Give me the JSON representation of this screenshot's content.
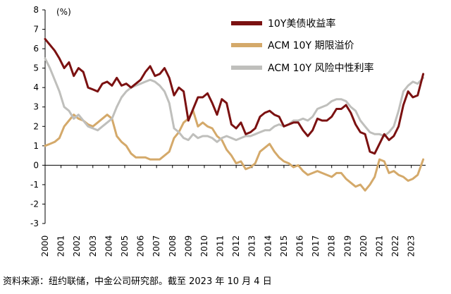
{
  "chart_data": {
    "type": "line",
    "unit_label": "(%)",
    "ylim": [
      -3,
      8
    ],
    "xlim": [
      2000,
      2023.9
    ],
    "y_ticks": [
      8,
      7,
      6,
      5,
      4,
      3,
      2,
      1,
      0,
      -1,
      -2,
      -3
    ],
    "x_ticks": [
      "2000",
      "2001",
      "2002",
      "2003",
      "2004",
      "2005",
      "2006",
      "2007",
      "2008",
      "2009",
      "2010",
      "2011",
      "2012",
      "2013",
      "2014",
      "2015",
      "2016",
      "2017",
      "2018",
      "2019",
      "2020",
      "2021",
      "2022",
      "2023"
    ],
    "grid": false,
    "legend_position": "top-right",
    "colors": {
      "yield": "#7B1111",
      "term_premium": "#D4A96A",
      "risk_neutral": "#BFBFBC"
    },
    "series": [
      {
        "key": "yield",
        "name": "10Y美债收益率",
        "x": [
          2000.0,
          2000.3,
          2000.6,
          2000.9,
          2001.2,
          2001.5,
          2001.8,
          2002.1,
          2002.4,
          2002.7,
          2003.0,
          2003.3,
          2003.6,
          2003.9,
          2004.2,
          2004.5,
          2004.8,
          2005.1,
          2005.4,
          2005.7,
          2006.0,
          2006.3,
          2006.6,
          2006.9,
          2007.2,
          2007.5,
          2007.8,
          2008.1,
          2008.4,
          2008.7,
          2009.0,
          2009.3,
          2009.6,
          2009.9,
          2010.2,
          2010.5,
          2010.8,
          2011.1,
          2011.4,
          2011.7,
          2012.0,
          2012.3,
          2012.6,
          2012.9,
          2013.2,
          2013.5,
          2013.8,
          2014.1,
          2014.4,
          2014.7,
          2015.0,
          2015.3,
          2015.6,
          2015.9,
          2016.2,
          2016.5,
          2016.8,
          2017.1,
          2017.4,
          2017.7,
          2018.0,
          2018.3,
          2018.6,
          2018.9,
          2019.2,
          2019.5,
          2019.8,
          2020.1,
          2020.4,
          2020.7,
          2021.0,
          2021.3,
          2021.6,
          2021.9,
          2022.2,
          2022.5,
          2022.8,
          2023.1,
          2023.4,
          2023.75
        ],
        "values": [
          6.5,
          6.2,
          5.9,
          5.5,
          5.0,
          5.3,
          4.6,
          5.0,
          4.8,
          4.0,
          3.9,
          3.8,
          4.2,
          4.3,
          4.1,
          4.5,
          4.1,
          4.2,
          4.0,
          4.2,
          4.4,
          4.8,
          5.1,
          4.6,
          4.7,
          5.0,
          4.5,
          3.6,
          4.0,
          3.8,
          2.3,
          2.9,
          3.5,
          3.5,
          3.7,
          3.2,
          2.6,
          3.4,
          3.2,
          2.1,
          1.9,
          2.2,
          1.6,
          1.7,
          1.9,
          2.5,
          2.7,
          2.8,
          2.6,
          2.5,
          2.0,
          2.1,
          2.2,
          2.2,
          1.8,
          1.5,
          1.8,
          2.4,
          2.3,
          2.3,
          2.5,
          2.9,
          2.9,
          3.1,
          2.7,
          2.1,
          1.7,
          1.6,
          0.7,
          0.6,
          1.1,
          1.6,
          1.3,
          1.5,
          2.0,
          3.1,
          3.8,
          3.5,
          3.6,
          4.7
        ]
      },
      {
        "key": "term_premium",
        "name": "ACM 10Y 期限溢价",
        "x": [
          2000.0,
          2000.3,
          2000.6,
          2000.9,
          2001.2,
          2001.5,
          2001.8,
          2002.1,
          2002.4,
          2002.7,
          2003.0,
          2003.3,
          2003.6,
          2003.9,
          2004.2,
          2004.5,
          2004.8,
          2005.1,
          2005.4,
          2005.7,
          2006.0,
          2006.3,
          2006.6,
          2006.9,
          2007.2,
          2007.5,
          2007.8,
          2008.1,
          2008.4,
          2008.7,
          2009.0,
          2009.3,
          2009.6,
          2009.9,
          2010.2,
          2010.5,
          2010.8,
          2011.1,
          2011.4,
          2011.7,
          2012.0,
          2012.3,
          2012.6,
          2012.9,
          2013.2,
          2013.5,
          2013.8,
          2014.1,
          2014.4,
          2014.7,
          2015.0,
          2015.3,
          2015.6,
          2015.9,
          2016.2,
          2016.5,
          2016.8,
          2017.1,
          2017.4,
          2017.7,
          2018.0,
          2018.3,
          2018.6,
          2018.9,
          2019.2,
          2019.5,
          2019.8,
          2020.1,
          2020.4,
          2020.7,
          2021.0,
          2021.3,
          2021.6,
          2021.9,
          2022.2,
          2022.5,
          2022.8,
          2023.1,
          2023.4,
          2023.75
        ],
        "values": [
          1.0,
          1.1,
          1.2,
          1.4,
          2.0,
          2.3,
          2.6,
          2.4,
          2.3,
          2.1,
          2.0,
          2.2,
          2.4,
          2.6,
          2.4,
          1.5,
          1.2,
          1.0,
          0.6,
          0.4,
          0.4,
          0.4,
          0.3,
          0.3,
          0.3,
          0.5,
          0.7,
          1.4,
          1.7,
          2.2,
          2.4,
          2.8,
          2.0,
          2.2,
          2.0,
          1.9,
          1.5,
          1.3,
          0.8,
          0.5,
          0.1,
          0.2,
          -0.2,
          -0.1,
          0.1,
          0.7,
          0.9,
          1.1,
          0.7,
          0.4,
          0.2,
          0.1,
          -0.1,
          0.0,
          -0.3,
          -0.5,
          -0.4,
          -0.3,
          -0.4,
          -0.5,
          -0.6,
          -0.4,
          -0.4,
          -0.7,
          -0.9,
          -1.1,
          -1.0,
          -1.3,
          -1.0,
          -0.6,
          0.3,
          0.2,
          -0.4,
          -0.3,
          -0.5,
          -0.6,
          -0.8,
          -0.7,
          -0.5,
          0.3
        ]
      },
      {
        "key": "risk_neutral",
        "name": "ACM 10Y 风险中性利率",
        "x": [
          2000.0,
          2000.3,
          2000.6,
          2000.9,
          2001.2,
          2001.5,
          2001.8,
          2002.1,
          2002.4,
          2002.7,
          2003.0,
          2003.3,
          2003.6,
          2003.9,
          2004.2,
          2004.5,
          2004.8,
          2005.1,
          2005.4,
          2005.7,
          2006.0,
          2006.3,
          2006.6,
          2006.9,
          2007.2,
          2007.5,
          2007.8,
          2008.1,
          2008.4,
          2008.7,
          2009.0,
          2009.3,
          2009.6,
          2009.9,
          2010.2,
          2010.5,
          2010.8,
          2011.1,
          2011.4,
          2011.7,
          2012.0,
          2012.3,
          2012.6,
          2012.9,
          2013.2,
          2013.5,
          2013.8,
          2014.1,
          2014.4,
          2014.7,
          2015.0,
          2015.3,
          2015.6,
          2015.9,
          2016.2,
          2016.5,
          2016.8,
          2017.1,
          2017.4,
          2017.7,
          2018.0,
          2018.3,
          2018.6,
          2018.9,
          2019.2,
          2019.5,
          2019.8,
          2020.1,
          2020.4,
          2020.7,
          2021.0,
          2021.3,
          2021.6,
          2021.9,
          2022.2,
          2022.5,
          2022.8,
          2023.1,
          2023.4,
          2023.75
        ],
        "values": [
          5.5,
          5.0,
          4.4,
          3.8,
          3.0,
          2.8,
          2.4,
          2.6,
          2.3,
          2.0,
          1.9,
          1.8,
          2.0,
          2.2,
          2.4,
          3.0,
          3.5,
          3.8,
          4.0,
          4.1,
          4.2,
          4.3,
          4.4,
          4.3,
          4.1,
          3.8,
          3.2,
          1.9,
          1.7,
          1.4,
          1.3,
          1.6,
          1.4,
          1.5,
          1.5,
          1.4,
          1.2,
          1.4,
          1.5,
          1.4,
          1.3,
          1.4,
          1.5,
          1.5,
          1.6,
          1.7,
          1.8,
          1.8,
          2.0,
          2.1,
          2.0,
          2.1,
          2.3,
          2.3,
          2.4,
          2.3,
          2.5,
          2.9,
          3.0,
          3.1,
          3.3,
          3.4,
          3.4,
          3.3,
          3.0,
          2.8,
          2.3,
          2.0,
          1.7,
          1.6,
          1.6,
          1.5,
          1.7,
          2.0,
          2.8,
          3.8,
          4.1,
          4.3,
          4.2,
          4.5
        ]
      }
    ],
    "source": "资料来源：纽约联储，中金公司研究部。截至 2023 年 10 月 4 日"
  }
}
